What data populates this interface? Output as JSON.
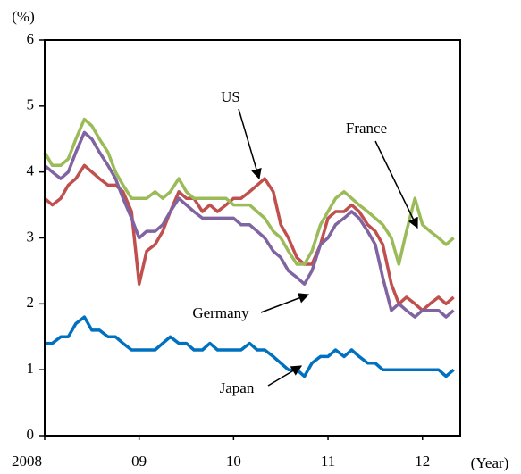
{
  "chart_data": {
    "type": "line",
    "y_label": "(%)",
    "x_label": "(Year)",
    "x": [
      2008.0,
      2008.08,
      2008.17,
      2008.25,
      2008.33,
      2008.42,
      2008.5,
      2008.58,
      2008.67,
      2008.75,
      2008.83,
      2008.92,
      2009.0,
      2009.08,
      2009.17,
      2009.25,
      2009.33,
      2009.42,
      2009.5,
      2009.58,
      2009.67,
      2009.75,
      2009.83,
      2009.92,
      2010.0,
      2010.08,
      2010.17,
      2010.25,
      2010.33,
      2010.42,
      2010.5,
      2010.58,
      2010.67,
      2010.75,
      2010.83,
      2010.92,
      2011.0,
      2011.08,
      2011.17,
      2011.25,
      2011.33,
      2011.42,
      2011.5,
      2011.58,
      2011.67,
      2011.75,
      2011.83,
      2011.92,
      2012.0,
      2012.08,
      2012.17,
      2012.25,
      2012.33
    ],
    "series": [
      {
        "name": "US",
        "color": "#c0504d",
        "values": [
          3.6,
          3.5,
          3.6,
          3.8,
          3.9,
          4.1,
          4.0,
          3.9,
          3.8,
          3.8,
          3.7,
          3.4,
          2.3,
          2.8,
          2.9,
          3.1,
          3.4,
          3.7,
          3.6,
          3.6,
          3.4,
          3.5,
          3.4,
          3.5,
          3.6,
          3.6,
          3.7,
          3.8,
          3.9,
          3.7,
          3.2,
          3.0,
          2.7,
          2.6,
          2.6,
          2.9,
          3.3,
          3.4,
          3.4,
          3.5,
          3.4,
          3.2,
          3.1,
          2.9,
          2.3,
          2.0,
          2.1,
          2.0,
          1.9,
          2.0,
          2.1,
          2.0,
          2.1
        ]
      },
      {
        "name": "Germany",
        "color": "#8064a2",
        "values": [
          4.1,
          4.0,
          3.9,
          4.0,
          4.3,
          4.6,
          4.5,
          4.3,
          4.1,
          3.9,
          3.6,
          3.3,
          3.0,
          3.1,
          3.1,
          3.2,
          3.4,
          3.6,
          3.5,
          3.4,
          3.3,
          3.3,
          3.3,
          3.3,
          3.3,
          3.2,
          3.2,
          3.1,
          3.0,
          2.8,
          2.7,
          2.5,
          2.4,
          2.3,
          2.5,
          2.9,
          3.0,
          3.2,
          3.3,
          3.4,
          3.3,
          3.1,
          2.9,
          2.4,
          1.9,
          2.0,
          1.9,
          1.8,
          1.9,
          1.9,
          1.9,
          1.8,
          1.9
        ]
      },
      {
        "name": "France",
        "color": "#9bbb59",
        "values": [
          4.3,
          4.1,
          4.1,
          4.2,
          4.5,
          4.8,
          4.7,
          4.5,
          4.3,
          4.0,
          3.8,
          3.6,
          3.6,
          3.6,
          3.7,
          3.6,
          3.7,
          3.9,
          3.7,
          3.6,
          3.6,
          3.6,
          3.6,
          3.6,
          3.5,
          3.5,
          3.5,
          3.4,
          3.3,
          3.1,
          3.0,
          2.8,
          2.6,
          2.6,
          2.8,
          3.2,
          3.4,
          3.6,
          3.7,
          3.6,
          3.5,
          3.4,
          3.3,
          3.2,
          3.0,
          2.6,
          3.1,
          3.6,
          3.2,
          3.1,
          3.0,
          2.9,
          3.0
        ]
      },
      {
        "name": "Japan",
        "color": "#0070c0",
        "values": [
          1.4,
          1.4,
          1.5,
          1.5,
          1.7,
          1.8,
          1.6,
          1.6,
          1.5,
          1.5,
          1.4,
          1.3,
          1.3,
          1.3,
          1.3,
          1.4,
          1.5,
          1.4,
          1.4,
          1.3,
          1.3,
          1.4,
          1.3,
          1.3,
          1.3,
          1.3,
          1.4,
          1.3,
          1.3,
          1.2,
          1.1,
          1.0,
          1.0,
          0.9,
          1.1,
          1.2,
          1.2,
          1.3,
          1.2,
          1.3,
          1.2,
          1.1,
          1.1,
          1.0,
          1.0,
          1.0,
          1.0,
          1.0,
          1.0,
          1.0,
          1.0,
          0.9,
          1.0
        ]
      }
    ],
    "xlim": [
      2008,
      2012.4
    ],
    "xticks": [
      {
        "value": 2008,
        "label": "2008"
      },
      {
        "value": 2009,
        "label": "09"
      },
      {
        "value": 2010,
        "label": "10"
      },
      {
        "value": 2011,
        "label": "11"
      },
      {
        "value": 2012,
        "label": "12"
      }
    ],
    "ylim": [
      0,
      6
    ],
    "yticks": [
      0,
      1,
      2,
      3,
      4,
      5,
      6
    ],
    "grid": false
  }
}
